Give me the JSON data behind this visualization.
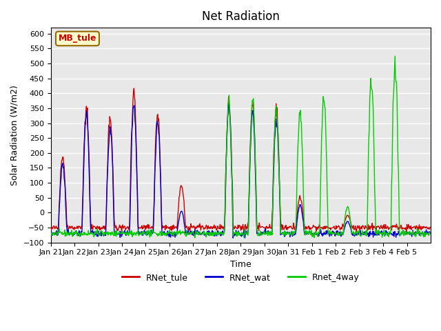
{
  "title": "Net Radiation",
  "xlabel": "Time",
  "ylabel": "Solar Radiation (W/m2)",
  "ylim": [
    -100,
    620
  ],
  "yticks": [
    -100,
    -50,
    0,
    50,
    100,
    150,
    200,
    250,
    300,
    350,
    400,
    450,
    500,
    550,
    600
  ],
  "xtick_labels": [
    "Jan 21",
    "Jan 22",
    "Jan 23",
    "Jan 24",
    "Jan 25",
    "Jan 26",
    "Jan 27",
    "Jan 28",
    "Jan 29",
    "Jan 30",
    "Jan 31",
    "Feb 1",
    "Feb 2",
    "Feb 3",
    "Feb 4",
    "Feb 5"
  ],
  "legend_labels": [
    "RNet_tule",
    "RNet_wat",
    "Rnet_4way"
  ],
  "legend_colors": [
    "#cc0000",
    "#0000cc",
    "#00cc00"
  ],
  "site_label": "MB_tule",
  "site_label_color": "#cc0000",
  "site_box_facecolor": "#ffffcc",
  "site_box_edgecolor": "#996600",
  "background_color": "#e8e8e8",
  "grid_color": "#ffffff",
  "line_colors": [
    "#cc0000",
    "#0000cc",
    "#00cc00"
  ],
  "line_width": 1.0,
  "n_days": 16,
  "pts_per_day": 48,
  "day_scales_tule": [
    240,
    410,
    370,
    460,
    380,
    140,
    0,
    420,
    415,
    400,
    100,
    0,
    40,
    0,
    0,
    0
  ],
  "day_scales_wat": [
    230,
    400,
    350,
    430,
    370,
    75,
    0,
    420,
    400,
    380,
    95,
    0,
    40,
    0,
    0,
    0
  ],
  "day_scales_4way": [
    0,
    0,
    0,
    0,
    0,
    0,
    0,
    440,
    450,
    410,
    410,
    455,
    90,
    510,
    560,
    0
  ],
  "base_tule": -50,
  "base_wat": -70,
  "base_4way": -70
}
